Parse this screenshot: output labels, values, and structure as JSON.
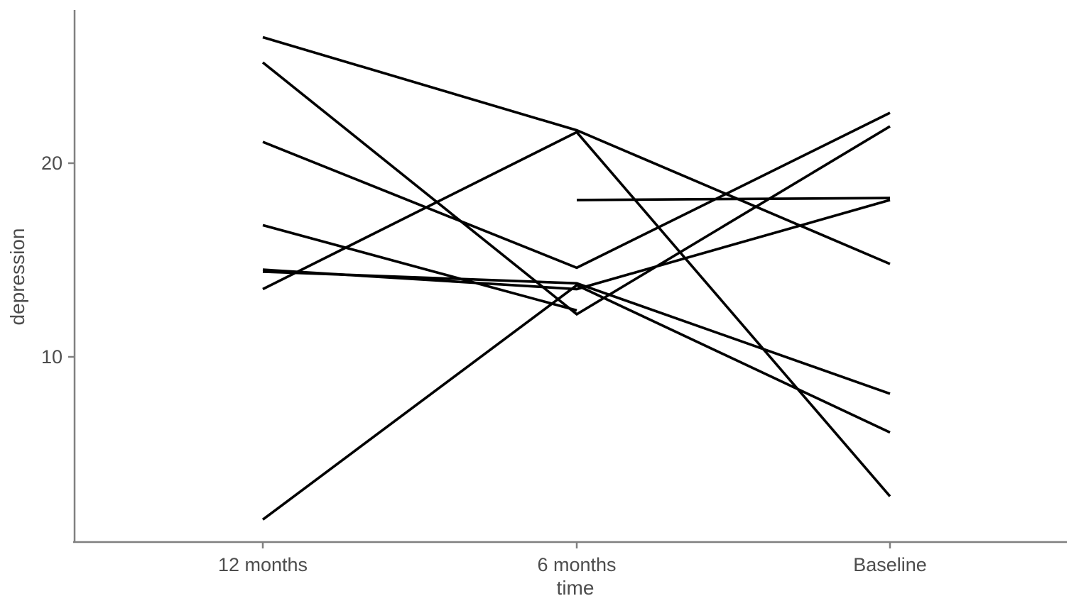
{
  "figure": {
    "xlabel": "time",
    "ylabel": "depression"
  },
  "chart_data": {
    "type": "line",
    "title": "",
    "xlabel": "time",
    "ylabel": "depression",
    "categories": [
      "12 months",
      "6 months",
      "Baseline"
    ],
    "yticks": [
      10,
      20
    ],
    "ylim": [
      0.5,
      27.5
    ],
    "grid": false,
    "legend": false,
    "line_color": "#000000",
    "series": [
      {
        "values": [
          26.5,
          21.7,
          14.8
        ]
      },
      {
        "values": [
          25.2,
          12.2,
          21.9
        ]
      },
      {
        "values": [
          21.1,
          14.6,
          22.6
        ]
      },
      {
        "values": [
          16.8,
          12.4,
          null
        ]
      },
      {
        "values": [
          14.5,
          13.5,
          18.1
        ]
      },
      {
        "values": [
          14.4,
          13.8,
          8.1
        ]
      },
      {
        "values": [
          13.5,
          21.6,
          2.8
        ]
      },
      {
        "values": [
          1.6,
          13.7,
          6.1
        ]
      },
      {
        "values": [
          null,
          18.1,
          18.2
        ]
      }
    ]
  },
  "theme": {
    "text_color": "#4d4d4d",
    "axis_color": "#808080",
    "background": "#ffffff"
  }
}
